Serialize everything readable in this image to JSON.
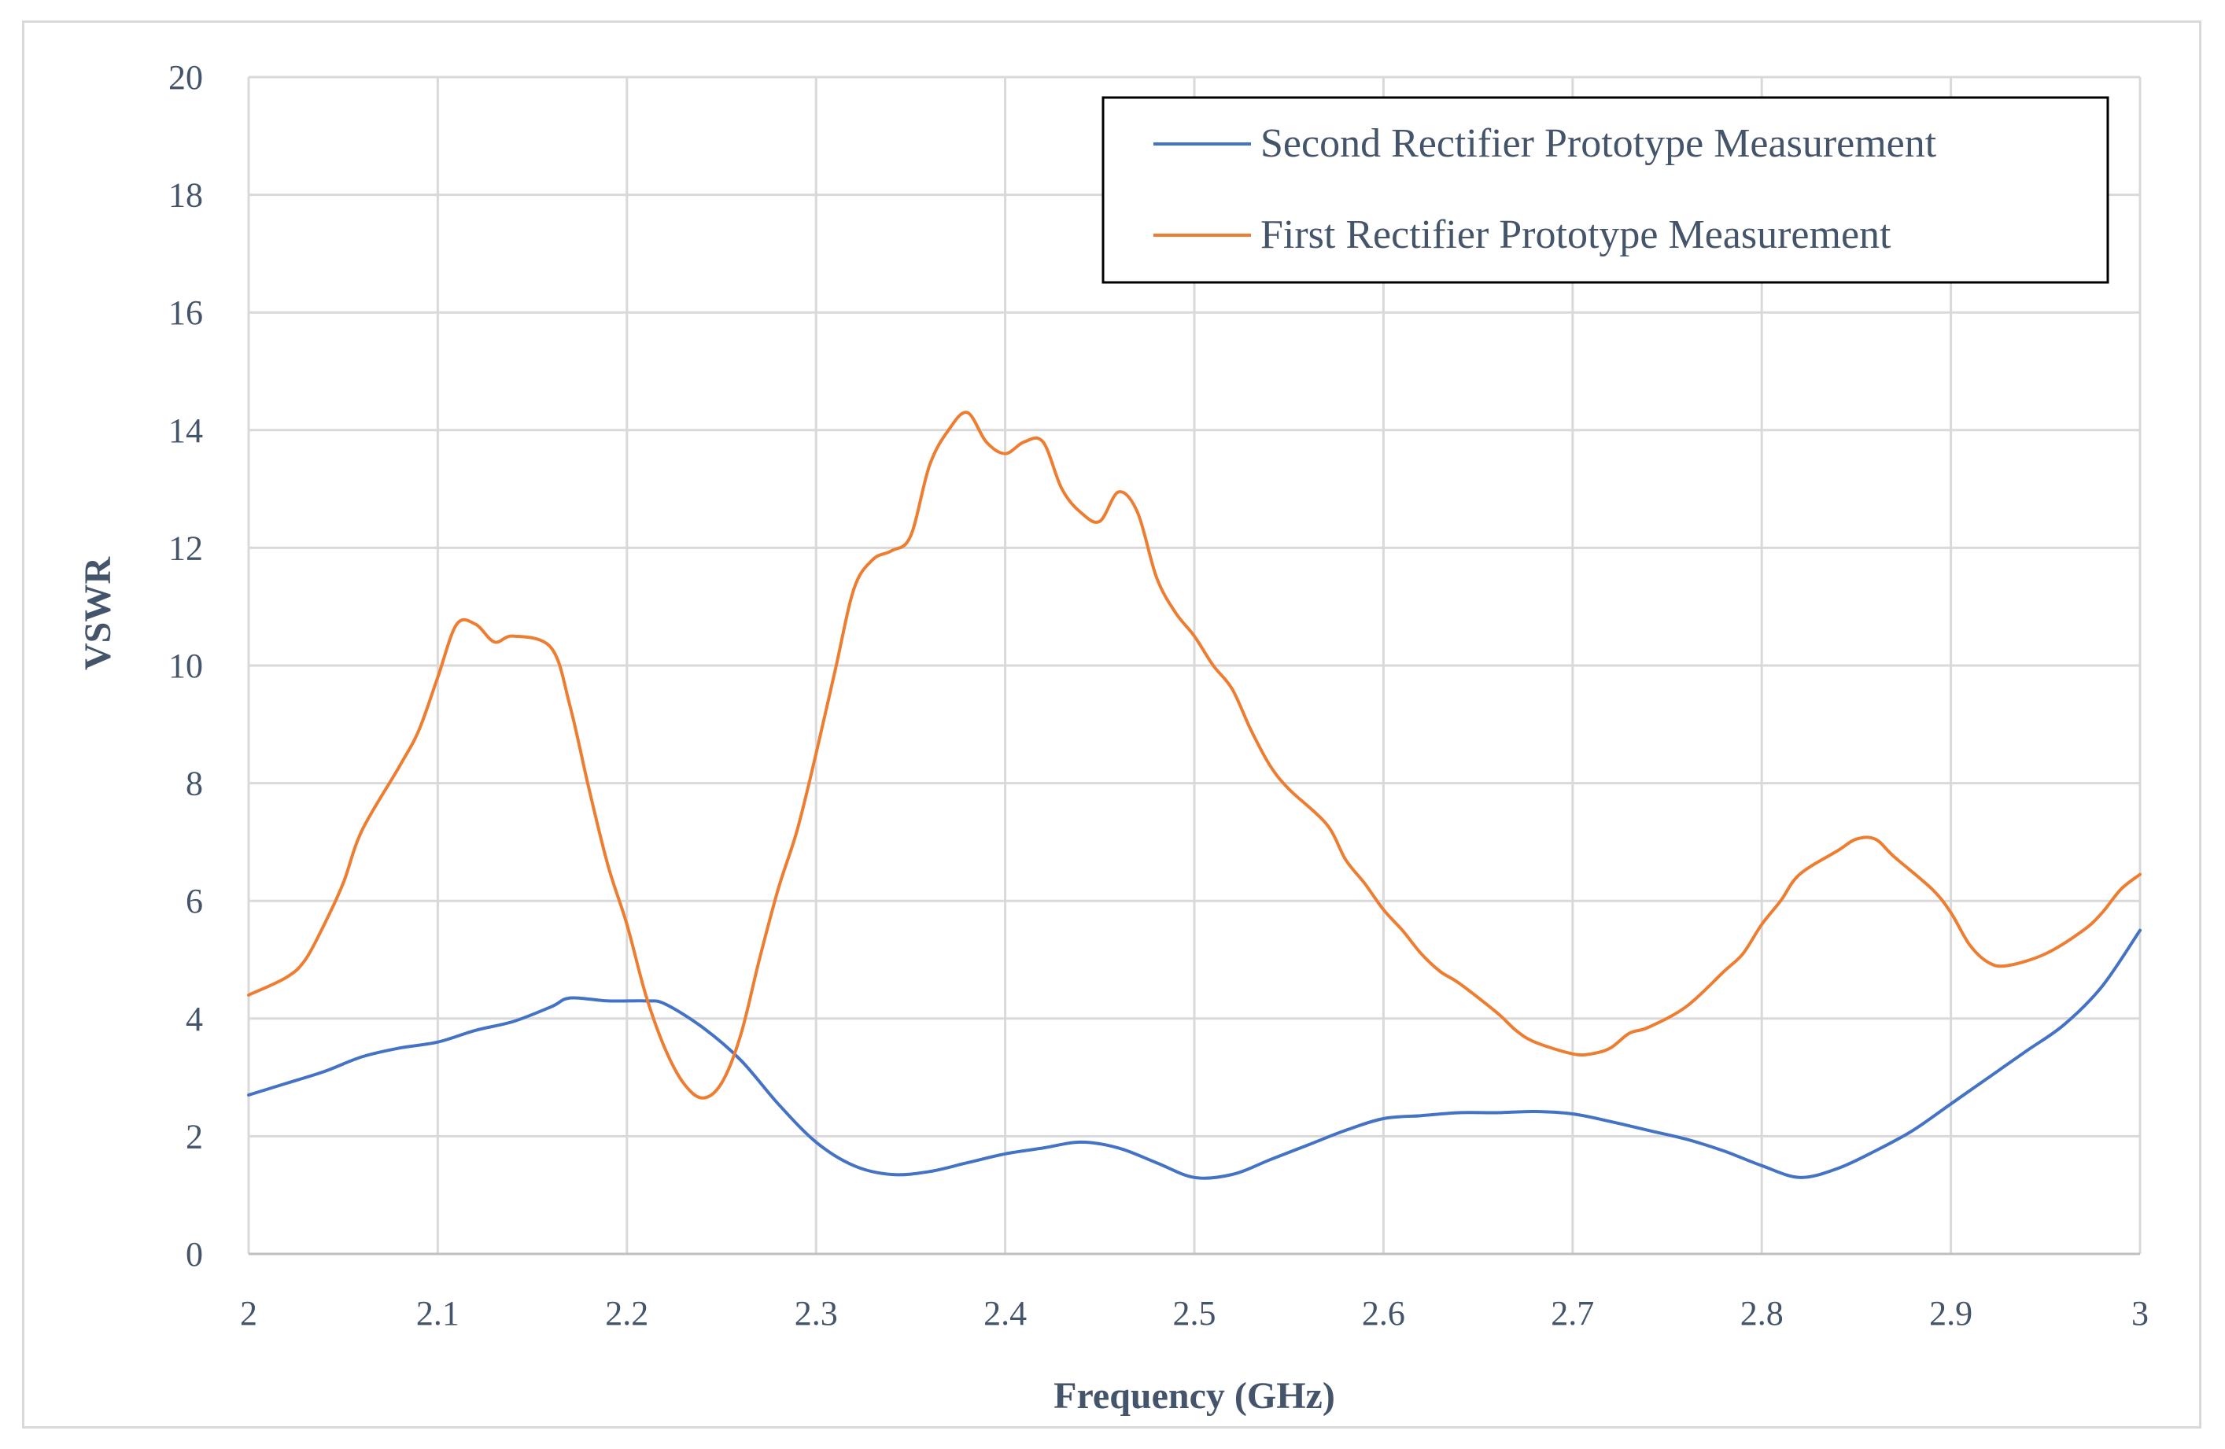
{
  "chart_data": {
    "type": "line",
    "title": "",
    "xlabel": "Frequency (GHz)",
    "ylabel": "VSWR",
    "xlim": [
      2,
      3
    ],
    "ylim": [
      0,
      20
    ],
    "x_ticks": [
      "2",
      "2.1",
      "2.2",
      "2.3",
      "2.4",
      "2.5",
      "2.6",
      "2.7",
      "2.8",
      "2.9",
      "3"
    ],
    "y_ticks": [
      "0",
      "2",
      "4",
      "6",
      "8",
      "10",
      "12",
      "14",
      "16",
      "18",
      "20"
    ],
    "grid": true,
    "legend_position": "top-right",
    "series": [
      {
        "name": "Second Rectifier Prototype Measurement",
        "color": "#4472c4",
        "points": [
          [
            2.0,
            2.7
          ],
          [
            2.02,
            2.9
          ],
          [
            2.04,
            3.1
          ],
          [
            2.06,
            3.35
          ],
          [
            2.08,
            3.5
          ],
          [
            2.1,
            3.6
          ],
          [
            2.12,
            3.8
          ],
          [
            2.14,
            3.95
          ],
          [
            2.16,
            4.2
          ],
          [
            2.17,
            4.35
          ],
          [
            2.19,
            4.3
          ],
          [
            2.21,
            4.3
          ],
          [
            2.22,
            4.25
          ],
          [
            2.24,
            3.85
          ],
          [
            2.26,
            3.3
          ],
          [
            2.28,
            2.55
          ],
          [
            2.3,
            1.9
          ],
          [
            2.32,
            1.5
          ],
          [
            2.34,
            1.35
          ],
          [
            2.36,
            1.4
          ],
          [
            2.38,
            1.55
          ],
          [
            2.4,
            1.7
          ],
          [
            2.42,
            1.8
          ],
          [
            2.44,
            1.9
          ],
          [
            2.46,
            1.8
          ],
          [
            2.48,
            1.55
          ],
          [
            2.5,
            1.3
          ],
          [
            2.52,
            1.35
          ],
          [
            2.54,
            1.6
          ],
          [
            2.56,
            1.85
          ],
          [
            2.58,
            2.1
          ],
          [
            2.6,
            2.3
          ],
          [
            2.62,
            2.35
          ],
          [
            2.64,
            2.4
          ],
          [
            2.66,
            2.4
          ],
          [
            2.68,
            2.42
          ],
          [
            2.7,
            2.38
          ],
          [
            2.72,
            2.25
          ],
          [
            2.74,
            2.1
          ],
          [
            2.76,
            1.95
          ],
          [
            2.78,
            1.75
          ],
          [
            2.8,
            1.5
          ],
          [
            2.82,
            1.3
          ],
          [
            2.84,
            1.45
          ],
          [
            2.86,
            1.75
          ],
          [
            2.88,
            2.1
          ],
          [
            2.9,
            2.55
          ],
          [
            2.92,
            3.0
          ],
          [
            2.94,
            3.45
          ],
          [
            2.96,
            3.9
          ],
          [
            2.98,
            4.55
          ],
          [
            3.0,
            5.5
          ]
        ]
      },
      {
        "name": "First Rectifier Prototype Measurement",
        "color": "#ed7d31",
        "points": [
          [
            2.0,
            4.4
          ],
          [
            2.02,
            4.7
          ],
          [
            2.03,
            5.0
          ],
          [
            2.04,
            5.6
          ],
          [
            2.05,
            6.3
          ],
          [
            2.06,
            7.2
          ],
          [
            2.08,
            8.3
          ],
          [
            2.09,
            8.9
          ],
          [
            2.1,
            9.8
          ],
          [
            2.11,
            10.7
          ],
          [
            2.12,
            10.7
          ],
          [
            2.13,
            10.4
          ],
          [
            2.14,
            10.5
          ],
          [
            2.16,
            10.3
          ],
          [
            2.17,
            9.3
          ],
          [
            2.18,
            7.9
          ],
          [
            2.19,
            6.6
          ],
          [
            2.2,
            5.6
          ],
          [
            2.21,
            4.4
          ],
          [
            2.22,
            3.5
          ],
          [
            2.23,
            2.9
          ],
          [
            2.24,
            2.65
          ],
          [
            2.25,
            2.9
          ],
          [
            2.26,
            3.7
          ],
          [
            2.27,
            5.0
          ],
          [
            2.28,
            6.2
          ],
          [
            2.29,
            7.2
          ],
          [
            2.3,
            8.5
          ],
          [
            2.31,
            9.9
          ],
          [
            2.32,
            11.3
          ],
          [
            2.33,
            11.8
          ],
          [
            2.34,
            11.95
          ],
          [
            2.35,
            12.2
          ],
          [
            2.36,
            13.4
          ],
          [
            2.37,
            14.0
          ],
          [
            2.38,
            14.3
          ],
          [
            2.39,
            13.8
          ],
          [
            2.4,
            13.6
          ],
          [
            2.41,
            13.8
          ],
          [
            2.42,
            13.8
          ],
          [
            2.43,
            13.0
          ],
          [
            2.44,
            12.6
          ],
          [
            2.45,
            12.45
          ],
          [
            2.46,
            12.95
          ],
          [
            2.47,
            12.6
          ],
          [
            2.48,
            11.5
          ],
          [
            2.49,
            10.9
          ],
          [
            2.5,
            10.5
          ],
          [
            2.51,
            10.0
          ],
          [
            2.52,
            9.6
          ],
          [
            2.53,
            8.9
          ],
          [
            2.54,
            8.3
          ],
          [
            2.55,
            7.9
          ],
          [
            2.57,
            7.3
          ],
          [
            2.58,
            6.7
          ],
          [
            2.59,
            6.3
          ],
          [
            2.6,
            5.85
          ],
          [
            2.61,
            5.5
          ],
          [
            2.62,
            5.1
          ],
          [
            2.63,
            4.8
          ],
          [
            2.64,
            4.6
          ],
          [
            2.66,
            4.1
          ],
          [
            2.67,
            3.8
          ],
          [
            2.68,
            3.6
          ],
          [
            2.7,
            3.4
          ],
          [
            2.71,
            3.4
          ],
          [
            2.72,
            3.5
          ],
          [
            2.73,
            3.75
          ],
          [
            2.74,
            3.85
          ],
          [
            2.76,
            4.2
          ],
          [
            2.78,
            4.8
          ],
          [
            2.79,
            5.1
          ],
          [
            2.8,
            5.6
          ],
          [
            2.81,
            6.0
          ],
          [
            2.82,
            6.45
          ],
          [
            2.84,
            6.85
          ],
          [
            2.85,
            7.05
          ],
          [
            2.86,
            7.05
          ],
          [
            2.87,
            6.75
          ],
          [
            2.89,
            6.2
          ],
          [
            2.9,
            5.8
          ],
          [
            2.91,
            5.25
          ],
          [
            2.92,
            4.95
          ],
          [
            2.93,
            4.9
          ],
          [
            2.95,
            5.1
          ],
          [
            2.97,
            5.5
          ],
          [
            2.98,
            5.8
          ],
          [
            2.99,
            6.2
          ],
          [
            3.0,
            6.45
          ]
        ]
      }
    ]
  }
}
